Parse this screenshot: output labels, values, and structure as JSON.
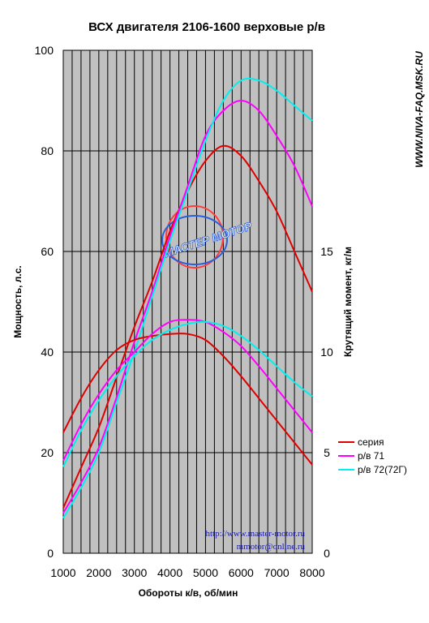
{
  "chart_data": {
    "type": "line",
    "title": "ВСХ двигателя 2106-1600 верховые р/в",
    "xlabel": "Обороты к/в, об/мин",
    "ylabel_left": "Мощность, л.с.",
    "ylabel_right": "Крутящий момент, кг/м",
    "side_text": "WWW.NIVA-FAQ.MSK.RU",
    "x_ticks": [
      1000,
      2000,
      3000,
      4000,
      5000,
      6000,
      7000,
      8000
    ],
    "xlim": [
      1000,
      8000
    ],
    "ylim_left": [
      0,
      100
    ],
    "y_ticks_left": [
      "100",
      "80",
      "60",
      "40",
      "20",
      "0"
    ],
    "y_ticks_left_values": [
      100,
      80,
      60,
      40,
      20,
      0
    ],
    "ylim_right": [
      0,
      25
    ],
    "y_ticks_right": [
      "15",
      "10",
      "5",
      "0"
    ],
    "y_ticks_right_values": [
      15,
      10,
      5,
      0
    ],
    "grid": true,
    "legend_position": "right",
    "colors": {
      "plot_bg": "#c0c0c0",
      "grid": "#000000",
      "series_red": "#e00000",
      "series_magenta": "#ff00ff",
      "series_cyan": "#00f0f0",
      "watermark_text": "#1a1ab0"
    },
    "series_power": [
      {
        "name": "серия",
        "x": [
          1000,
          1500,
          2000,
          2500,
          3000,
          3500,
          4000,
          4500,
          5000,
          5500,
          6000,
          6500,
          7000,
          7500,
          8000
        ],
        "y": [
          9,
          17,
          25,
          35,
          45,
          54,
          64,
          72,
          78,
          81,
          79,
          74,
          68,
          60,
          52
        ]
      },
      {
        "name": "р/в 71",
        "x": [
          1000,
          1500,
          2000,
          2500,
          3000,
          3500,
          4000,
          4500,
          5000,
          5500,
          6000,
          6500,
          7000,
          7500,
          8000
        ],
        "y": [
          8,
          14,
          21,
          31,
          42,
          52,
          63,
          73,
          83,
          88,
          90,
          88,
          83,
          77,
          69
        ]
      },
      {
        "name": "р/в 72(72Г)",
        "x": [
          1000,
          1500,
          2000,
          2500,
          3000,
          3500,
          4000,
          4500,
          5000,
          5500,
          6000,
          6500,
          7000,
          7500,
          8000
        ],
        "y": [
          7,
          13,
          20,
          30,
          40,
          51,
          62,
          72,
          82,
          90,
          94,
          94,
          92,
          89,
          86
        ]
      }
    ],
    "series_torque": [
      {
        "name": "серия",
        "x": [
          1000,
          1500,
          2000,
          2500,
          3000,
          3500,
          4000,
          4500,
          5000,
          5500,
          6000,
          6500,
          7000,
          7500,
          8000
        ],
        "y": [
          6.0,
          7.7,
          9.1,
          10.1,
          10.6,
          10.8,
          10.9,
          10.9,
          10.6,
          9.8,
          8.8,
          7.7,
          6.6,
          5.5,
          4.4
        ]
      },
      {
        "name": "р/в 71",
        "x": [
          1000,
          1500,
          2000,
          2500,
          3000,
          3500,
          4000,
          4500,
          5000,
          5500,
          6000,
          6500,
          7000,
          7500,
          8000
        ],
        "y": [
          4.6,
          6.4,
          7.9,
          9.1,
          10.0,
          10.9,
          11.5,
          11.6,
          11.5,
          11.0,
          10.3,
          9.3,
          8.2,
          7.1,
          6.0
        ]
      },
      {
        "name": "р/в 72(72Г)",
        "x": [
          1000,
          1500,
          2000,
          2500,
          3000,
          3500,
          4000,
          4500,
          5000,
          5500,
          6000,
          6500,
          7000,
          7500,
          8000
        ],
        "y": [
          4.3,
          6.1,
          7.6,
          8.8,
          9.8,
          10.6,
          11.1,
          11.4,
          11.5,
          11.3,
          10.8,
          10.1,
          9.3,
          8.5,
          7.8
        ]
      }
    ],
    "legend": [
      "серия",
      "р/в 71",
      "р/в 72(72Г)"
    ],
    "watermark": {
      "logo_text": "МАСТЕР МОТОР",
      "lines": [
        "http://www.master-motor.ru",
        "mmotor@online.ru"
      ]
    }
  }
}
